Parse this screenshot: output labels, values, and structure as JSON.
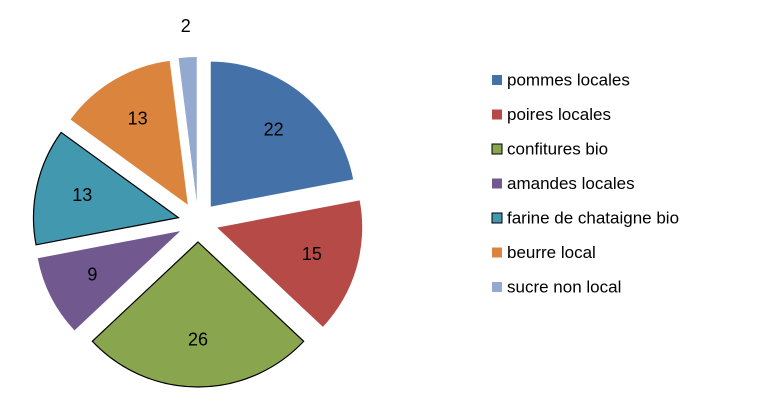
{
  "chart_data": {
    "type": "pie",
    "categories": [
      "pommes locales",
      "poires locales",
      "confitures bio",
      "amandes locales",
      "farine de chataigne bio",
      "beurre local",
      "sucre non local"
    ],
    "values": [
      22,
      15,
      26,
      9,
      13,
      13,
      2
    ],
    "colors": [
      "#4472a8",
      "#b64a47",
      "#89a54e",
      "#71588f",
      "#4198af",
      "#db843d",
      "#93a9cf"
    ],
    "edge_colors": [
      "none",
      "none",
      "#000000",
      "none",
      "#000000",
      "none",
      "none"
    ],
    "exploded": true,
    "legend": "right"
  }
}
